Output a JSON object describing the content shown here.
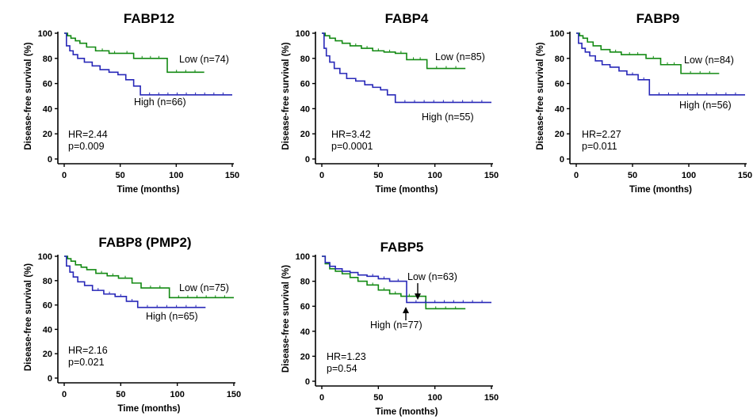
{
  "chart_data": [
    {
      "type": "line",
      "title": "FABP12",
      "xlabel": "Time (months)",
      "ylabel": "Disease-free survival (%)",
      "xlim": [
        0,
        150
      ],
      "ylim": [
        0,
        100
      ],
      "xticks": [
        0,
        50,
        100,
        150
      ],
      "yticks": [
        0,
        20,
        40,
        60,
        80,
        100
      ],
      "series": [
        {
          "name": "Low (n=74)",
          "color": "#138a13",
          "x": [
            0,
            3,
            6,
            10,
            14,
            20,
            28,
            40,
            50,
            62,
            92,
            125
          ],
          "y": [
            100,
            98,
            96,
            94,
            92,
            89,
            86,
            84,
            84,
            80,
            69,
            69
          ]
        },
        {
          "name": "High (n=66)",
          "color": "#2828b8",
          "x": [
            0,
            2,
            5,
            8,
            12,
            18,
            25,
            32,
            40,
            48,
            55,
            62,
            68,
            150
          ],
          "y": [
            100,
            90,
            86,
            83,
            80,
            77,
            74,
            71,
            69,
            67,
            63,
            58,
            51,
            51
          ]
        }
      ],
      "annotations": [
        "HR=2.44",
        "p=0.009"
      ]
    },
    {
      "type": "line",
      "title": "FABP4",
      "xlabel": "Time (months)",
      "ylabel": "Disease-free survival (%)",
      "xlim": [
        0,
        150
      ],
      "ylim": [
        0,
        100
      ],
      "xticks": [
        0,
        50,
        100,
        150
      ],
      "yticks": [
        0,
        20,
        40,
        60,
        80,
        100
      ],
      "series": [
        {
          "name": "Low (n=85)",
          "color": "#138a13",
          "x": [
            0,
            3,
            7,
            12,
            18,
            25,
            35,
            45,
            55,
            65,
            75,
            93,
            127
          ],
          "y": [
            100,
            98,
            96,
            94,
            92,
            90,
            88,
            86,
            85,
            84,
            79,
            72,
            72
          ]
        },
        {
          "name": "High (n=55)",
          "color": "#2828b8",
          "x": [
            0,
            2,
            4,
            7,
            11,
            16,
            22,
            30,
            38,
            45,
            52,
            58,
            65,
            150
          ],
          "y": [
            100,
            88,
            82,
            77,
            72,
            68,
            64,
            62,
            59,
            57,
            55,
            51,
            45,
            45
          ]
        }
      ],
      "annotations": [
        "HR=3.42",
        "p=0.0001"
      ]
    },
    {
      "type": "line",
      "title": "FABP9",
      "xlabel": "Time (months)",
      "ylabel": "Disease-free survival (%)",
      "xlim": [
        0,
        150
      ],
      "ylim": [
        0,
        100
      ],
      "xticks": [
        0,
        50,
        100,
        150
      ],
      "yticks": [
        0,
        20,
        40,
        60,
        80,
        100
      ],
      "series": [
        {
          "name": "Low (n=84)",
          "color": "#138a13",
          "x": [
            0,
            3,
            6,
            10,
            15,
            22,
            30,
            40,
            62,
            75,
            93,
            127
          ],
          "y": [
            100,
            98,
            96,
            93,
            90,
            87,
            85,
            83,
            80,
            75,
            68,
            68
          ]
        },
        {
          "name": "High (n=56)",
          "color": "#2828b8",
          "x": [
            0,
            2,
            5,
            8,
            12,
            17,
            23,
            30,
            38,
            45,
            55,
            65,
            150
          ],
          "y": [
            100,
            92,
            88,
            85,
            82,
            78,
            75,
            73,
            70,
            67,
            63,
            51,
            51
          ]
        }
      ],
      "annotations": [
        "HR=2.27",
        "p=0.011"
      ]
    },
    {
      "type": "line",
      "title": "FABP8 (PMP2)",
      "xlabel": "Time (months)",
      "ylabel": "Disease-free survival (%)",
      "xlim": [
        0,
        150
      ],
      "ylim": [
        0,
        100
      ],
      "xticks": [
        0,
        50,
        100,
        150
      ],
      "yticks": [
        0,
        20,
        40,
        60,
        80,
        100
      ],
      "series": [
        {
          "name": "Low (n=75)",
          "color": "#138a13",
          "x": [
            0,
            3,
            6,
            10,
            15,
            20,
            28,
            38,
            48,
            60,
            68,
            93,
            150
          ],
          "y": [
            100,
            98,
            96,
            93,
            91,
            89,
            86,
            84,
            82,
            78,
            74,
            66,
            66
          ]
        },
        {
          "name": "High (n=65)",
          "color": "#2828b8",
          "x": [
            0,
            2,
            5,
            8,
            12,
            18,
            25,
            35,
            45,
            55,
            65,
            125
          ],
          "y": [
            100,
            92,
            87,
            83,
            79,
            76,
            72,
            69,
            67,
            63,
            58,
            58
          ]
        }
      ],
      "annotations": [
        "HR=2.16",
        "p=0.021"
      ]
    },
    {
      "type": "line",
      "title": "FABP5",
      "xlabel": "Time (months)",
      "ylabel": "Disease-free survival (%)",
      "xlim": [
        0,
        150
      ],
      "ylim": [
        0,
        100
      ],
      "xticks": [
        0,
        50,
        100,
        150
      ],
      "yticks": [
        0,
        20,
        40,
        60,
        80,
        100
      ],
      "series": [
        {
          "name": "Low (n=63)",
          "color": "#138a13",
          "x": [
            0,
            3,
            7,
            12,
            18,
            25,
            32,
            40,
            50,
            60,
            70,
            92,
            127
          ],
          "y": [
            100,
            94,
            90,
            88,
            86,
            83,
            80,
            77,
            73,
            70,
            68,
            58,
            58
          ]
        },
        {
          "name": "High (n=77)",
          "color": "#2828b8",
          "x": [
            0,
            3,
            7,
            12,
            18,
            25,
            32,
            40,
            50,
            60,
            75,
            150
          ],
          "y": [
            100,
            95,
            92,
            90,
            88,
            87,
            85,
            84,
            82,
            80,
            63,
            63
          ]
        }
      ],
      "annotations": [
        "HR=1.23",
        "p=0.54"
      ]
    }
  ]
}
